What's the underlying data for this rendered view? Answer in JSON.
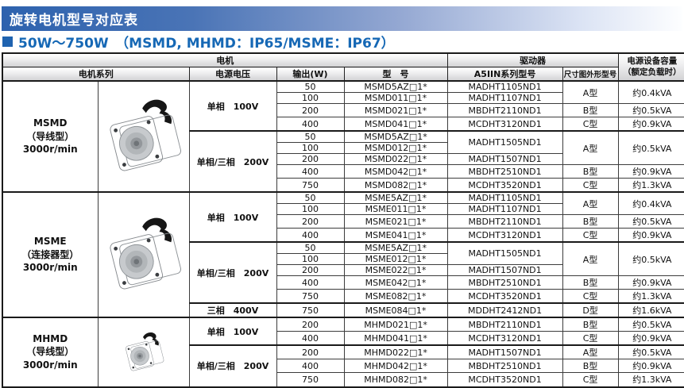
{
  "page": {
    "title": "旋转电机型号对应表",
    "subtitle": "50W～750W　（MSMD, MHMD：IP65/MSME：IP67）"
  },
  "colors": {
    "accent_blue": "#1668b5",
    "square_blue": "#1f63b0",
    "bar_blue": "#2d62ae",
    "header_gray": "#d2d2d4"
  },
  "icons": {
    "blue_square": "blue-square-icon",
    "motor_photo": "motor-image"
  },
  "table": {
    "header": {
      "motor": "电机",
      "driver": "驱动器",
      "capacity_line1": "电源设备容量",
      "capacity_line2": "（额定负载时）",
      "series": "电机系列",
      "voltage": "电源电压",
      "output": "输出(W)",
      "model": "型　号",
      "driver_model": "A5IIN系列型号",
      "frame": "尺寸图外形型号"
    },
    "sections": [
      {
        "series": [
          "MSMD",
          "（导线型）",
          "3000r/min"
        ],
        "groups": [
          {
            "voltage": "单相　100V",
            "rows": [
              {
                "output": "50",
                "model": "MSMD5AZ□1*",
                "driver": {
                  "t": "MADHT1105ND1"
                },
                "frame": {
                  "t": "A型",
                  "rs": 2
                },
                "capacity": {
                  "t": "约0.4kVA",
                  "rs": 2
                }
              },
              {
                "output": "100",
                "model": "MSMD011□1*",
                "driver": {
                  "t": "MADHT1107ND1"
                }
              },
              {
                "output": "200",
                "model": "MSMD021□1*",
                "driver": {
                  "t": "MBDHT2110ND1"
                },
                "frame": {
                  "t": "B型"
                },
                "capacity": {
                  "t": "约0.5kVA"
                }
              },
              {
                "output": "400",
                "model": "MSMD041□1*",
                "driver": {
                  "t": "MCDHT3120ND1"
                },
                "frame": {
                  "t": "C型"
                },
                "capacity": {
                  "t": "约0.9kVA"
                }
              }
            ]
          },
          {
            "voltage": "单相/三相　200V",
            "rows": [
              {
                "output": "50",
                "model": "MSMD5AZ□1*",
                "driver": {
                  "t": "MADHT1505ND1",
                  "rs": 2
                },
                "frame": {
                  "t": "A型",
                  "rs": 3
                },
                "capacity": {
                  "t": "约0.5kVA",
                  "rs": 3
                }
              },
              {
                "output": "100",
                "model": "MSMD012□1*"
              },
              {
                "output": "200",
                "model": "MSMD022□1*",
                "driver": {
                  "t": "MADHT1507ND1"
                }
              },
              {
                "output": "400",
                "model": "MSMD042□1*",
                "driver": {
                  "t": "MBDHT2510ND1"
                },
                "frame": {
                  "t": "B型"
                },
                "capacity": {
                  "t": "约0.9kVA"
                }
              },
              {
                "output": "750",
                "model": "MSMD082□1*",
                "driver": {
                  "t": "MCDHT3520ND1"
                },
                "frame": {
                  "t": "C型"
                },
                "capacity": {
                  "t": "约1.3kVA"
                }
              }
            ]
          }
        ]
      },
      {
        "series": [
          "MSME",
          "（连接器型）",
          "3000r/min"
        ],
        "groups": [
          {
            "voltage": "单相　100V",
            "rows": [
              {
                "output": "50",
                "model": "MSME5AZ□1*",
                "driver": {
                  "t": "MADHT1105ND1"
                },
                "frame": {
                  "t": "A型",
                  "rs": 2
                },
                "capacity": {
                  "t": "约0.4kVA",
                  "rs": 2
                }
              },
              {
                "output": "100",
                "model": "MSME011□1*",
                "driver": {
                  "t": "MADHT1107ND1"
                }
              },
              {
                "output": "200",
                "model": "MSME021□1*",
                "driver": {
                  "t": "MBDHT2110ND1"
                },
                "frame": {
                  "t": "B型"
                },
                "capacity": {
                  "t": "约0.5kVA"
                }
              },
              {
                "output": "400",
                "model": "MSME041□1*",
                "driver": {
                  "t": "MCDHT3120ND1"
                },
                "frame": {
                  "t": "C型"
                },
                "capacity": {
                  "t": "约0.9kVA"
                }
              }
            ]
          },
          {
            "voltage": "单相/三相　200V",
            "rows": [
              {
                "output": "50",
                "model": "MSME5AZ□1*",
                "driver": {
                  "t": "MADHT1505ND1",
                  "rs": 2
                },
                "frame": {
                  "t": "A型",
                  "rs": 3
                },
                "capacity": {
                  "t": "约0.5kVA",
                  "rs": 3
                }
              },
              {
                "output": "100",
                "model": "MSME012□1*"
              },
              {
                "output": "200",
                "model": "MSME022□1*",
                "driver": {
                  "t": "MADHT1507ND1"
                }
              },
              {
                "output": "400",
                "model": "MSME042□1*",
                "driver": {
                  "t": "MBDHT2510ND1"
                },
                "frame": {
                  "t": "B型"
                },
                "capacity": {
                  "t": "约0.9kVA"
                }
              },
              {
                "output": "750",
                "model": "MSME082□1*",
                "driver": {
                  "t": "MCDHT3520ND1"
                },
                "frame": {
                  "t": "C型"
                },
                "capacity": {
                  "t": "约1.3kVA"
                }
              }
            ]
          },
          {
            "voltage": "三相　400V",
            "rows": [
              {
                "output": "750",
                "model": "MSME084□1*",
                "driver": {
                  "t": "MDDHT2412ND1"
                },
                "frame": {
                  "t": "D型"
                },
                "capacity": {
                  "t": "约1.6kVA"
                }
              }
            ]
          }
        ]
      },
      {
        "series": [
          "MHMD",
          "（导线型）",
          "3000r/min"
        ],
        "groups": [
          {
            "voltage": "单相　100V",
            "rows": [
              {
                "output": "200",
                "model": "MHMD021□1*",
                "driver": {
                  "t": "MBDHT2110ND1"
                },
                "frame": {
                  "t": "B型"
                },
                "capacity": {
                  "t": "约0.5kVA"
                }
              },
              {
                "output": "400",
                "model": "MHMD041□1*",
                "driver": {
                  "t": "MCDHT3120ND1"
                },
                "frame": {
                  "t": "C型"
                },
                "capacity": {
                  "t": "约0.9kVA"
                }
              }
            ]
          },
          {
            "voltage": "单相/三相　200V",
            "rows": [
              {
                "output": "200",
                "model": "MHMD022□1*",
                "driver": {
                  "t": "MADHT1507ND1"
                },
                "frame": {
                  "t": "A型"
                },
                "capacity": {
                  "t": "约0.5kVA"
                }
              },
              {
                "output": "400",
                "model": "MHMD042□1*",
                "driver": {
                  "t": "MBDHT2510ND1"
                },
                "frame": {
                  "t": "B型"
                },
                "capacity": {
                  "t": "约0.9kVA"
                }
              },
              {
                "output": "750",
                "model": "MHMD082□1*",
                "driver": {
                  "t": "MCDHT3520ND1"
                },
                "frame": {
                  "t": "C型"
                },
                "capacity": {
                  "t": "约1.3kVA"
                }
              }
            ]
          }
        ]
      }
    ]
  }
}
